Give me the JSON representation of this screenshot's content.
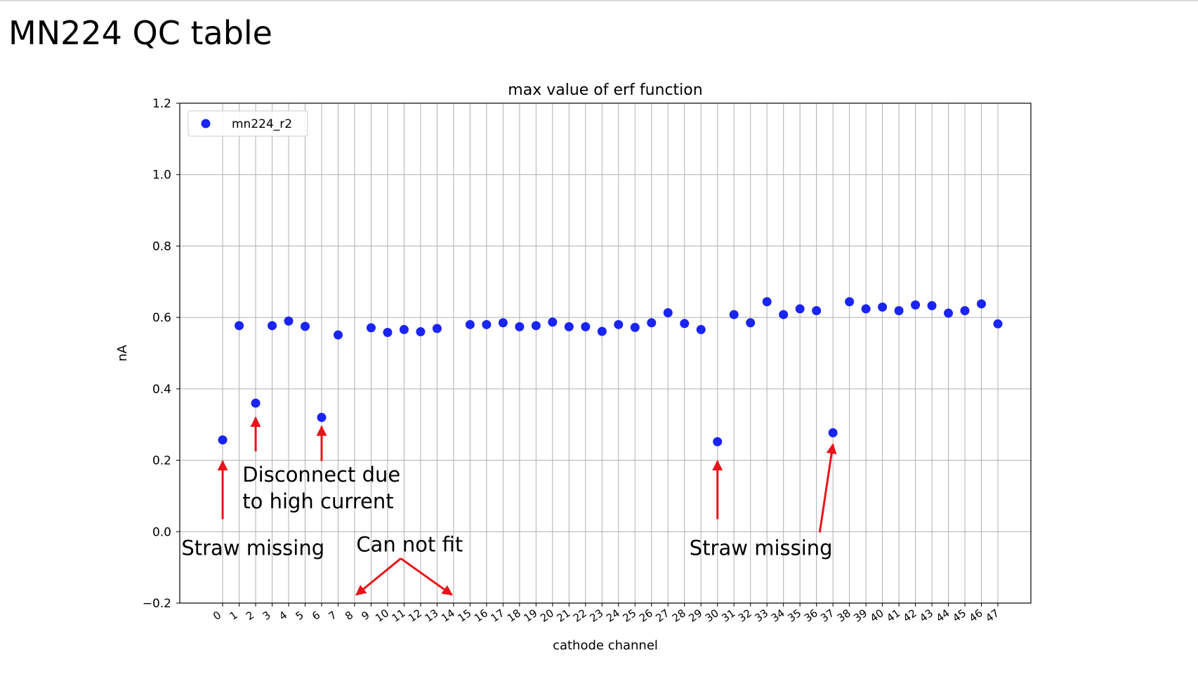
{
  "slide": {
    "title": "MN224 QC table"
  },
  "colors": {
    "marker": "#1a24f5",
    "annotation_arrow": "#e8141b",
    "grid": "#b0b0b0"
  },
  "chart_data": {
    "type": "scatter",
    "title": "max value of erf function",
    "xlabel": "cathode channel",
    "ylabel": "nA",
    "xlim": [
      -2.6,
      49
    ],
    "ylim": [
      -0.2,
      1.2
    ],
    "grid": true,
    "legend_position": "top-left",
    "x_ticks": [
      0,
      1,
      2,
      3,
      4,
      5,
      6,
      7,
      8,
      9,
      10,
      11,
      12,
      13,
      14,
      15,
      16,
      17,
      18,
      19,
      20,
      21,
      22,
      23,
      24,
      25,
      26,
      27,
      28,
      29,
      30,
      31,
      32,
      33,
      34,
      35,
      36,
      37,
      38,
      39,
      40,
      41,
      42,
      43,
      44,
      45,
      46,
      47
    ],
    "y_ticks": [
      -0.2,
      0.0,
      0.2,
      0.4,
      0.6,
      0.8,
      1.0,
      1.2
    ],
    "y_tick_labels": [
      "−0.2",
      "0.0",
      "0.2",
      "0.4",
      "0.6",
      "0.8",
      "1.0",
      "1.2"
    ],
    "series": [
      {
        "name": "mn224_r2",
        "x": [
          0,
          1,
          2,
          3,
          4,
          5,
          6,
          7,
          9,
          10,
          11,
          12,
          13,
          15,
          16,
          17,
          18,
          19,
          20,
          21,
          22,
          23,
          24,
          25,
          26,
          27,
          28,
          29,
          30,
          31,
          32,
          33,
          34,
          35,
          36,
          37,
          38,
          39,
          40,
          41,
          42,
          43,
          44,
          45,
          46,
          47
        ],
        "y": [
          0.257,
          0.577,
          0.36,
          0.577,
          0.59,
          0.575,
          0.32,
          0.551,
          0.571,
          0.558,
          0.566,
          0.56,
          0.569,
          0.58,
          0.58,
          0.585,
          0.574,
          0.577,
          0.587,
          0.574,
          0.574,
          0.561,
          0.58,
          0.572,
          0.585,
          0.613,
          0.583,
          0.566,
          0.252,
          0.608,
          0.585,
          0.644,
          0.608,
          0.624,
          0.619,
          0.277,
          0.644,
          0.624,
          0.629,
          0.619,
          0.635,
          0.633,
          0.612,
          0.619,
          0.638,
          0.582
        ]
      }
    ],
    "annotations": [
      {
        "text": "Straw missing",
        "tx": -2.5,
        "ty": -0.065,
        "arrows": [
          {
            "from": [
              0,
              0.035
            ],
            "to": [
              0,
              0.198
            ]
          }
        ]
      },
      {
        "text": "Disconnect due\nto high current",
        "tx": 1.2,
        "ty": 0.14,
        "arrows": [
          {
            "from": [
              2,
              0.225
            ],
            "to": [
              2,
              0.32
            ]
          },
          {
            "from": [
              6,
              0.198
            ],
            "to": [
              6,
              0.295
            ]
          }
        ]
      },
      {
        "text": "Can not fit",
        "tx": 8.1,
        "ty": -0.055,
        "arrows": [
          {
            "from": [
              10.8,
              -0.075
            ],
            "to": [
              8.1,
              -0.177
            ]
          },
          {
            "from": [
              10.8,
              -0.075
            ],
            "to": [
              13.9,
              -0.177
            ]
          }
        ]
      },
      {
        "text": "Straw missing",
        "tx": 28.3,
        "ty": -0.065,
        "arrows": [
          {
            "from": [
              30,
              0.035
            ],
            "to": [
              30,
              0.198
            ]
          },
          {
            "from": [
              36.2,
              -0.002
            ],
            "to": [
              37,
              0.245
            ]
          }
        ]
      }
    ]
  }
}
